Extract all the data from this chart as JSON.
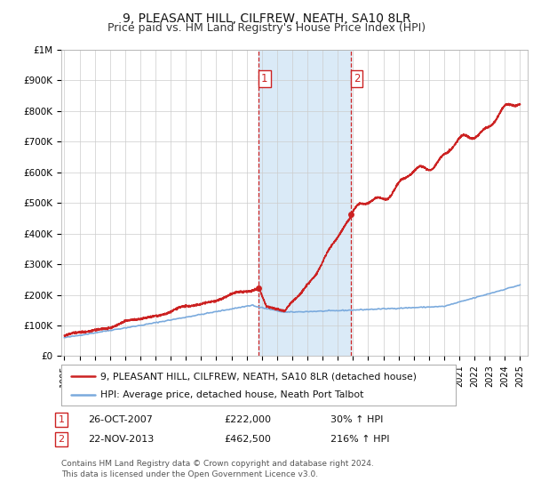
{
  "title": "9, PLEASANT HILL, CILFREW, NEATH, SA10 8LR",
  "subtitle": "Price paid vs. HM Land Registry's House Price Index (HPI)",
  "legend_line1": "9, PLEASANT HILL, CILFREW, NEATH, SA10 8LR (detached house)",
  "legend_line2": "HPI: Average price, detached house, Neath Port Talbot",
  "sale1_date": "26-OCT-2007",
  "sale1_price": 222000,
  "sale2_date": "22-NOV-2013",
  "sale2_price": 462500,
  "sale1_pct": "30% ↑ HPI",
  "sale2_pct": "216% ↑ HPI",
  "sale1_price_str": "£222,000",
  "sale2_price_str": "£462,500",
  "footnote_line1": "Contains HM Land Registry data © Crown copyright and database right 2024.",
  "footnote_line2": "This data is licensed under the Open Government Licence v3.0.",
  "xmin": 1994.8,
  "xmax": 2025.5,
  "ymin": 0,
  "ymax": 1000000,
  "sale1_x": 2007.81,
  "sale2_x": 2013.89,
  "hpi_color": "#7aaadd",
  "price_color": "#cc2222",
  "shade_color": "#daeaf7",
  "vline_color": "#cc2222",
  "background_color": "#ffffff",
  "grid_color": "#cccccc",
  "title_fontsize": 10,
  "subtitle_fontsize": 9
}
